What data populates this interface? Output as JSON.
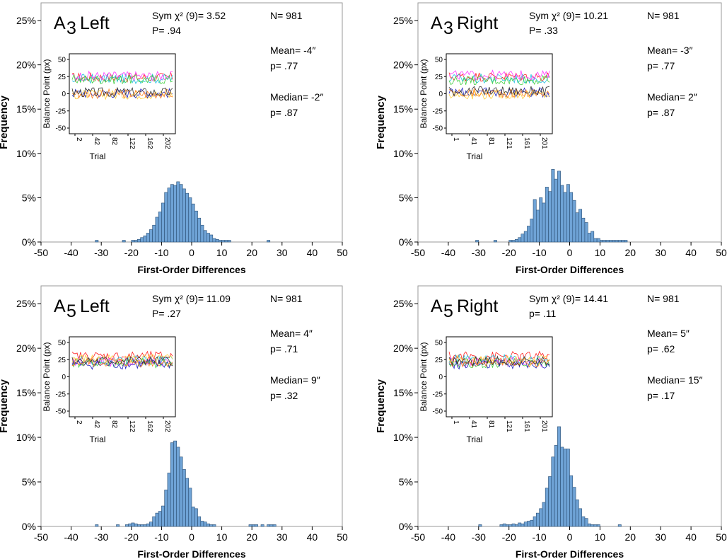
{
  "chart_data": [
    {
      "type": "bar",
      "title_main": "A",
      "title_sub": "3",
      "title_side": "Left",
      "stat_sym": "Sym χ² (9)= 3.52",
      "stat_p": "P= .94",
      "stat_n": "N= 981",
      "stat_mean": "Mean= -4″",
      "stat_mean_p": "p= .77",
      "stat_median": "Median= -2″",
      "stat_median_p": "p= .87",
      "xlabel": "First-Order Differences",
      "ylabel": "Frequency",
      "xlim": [
        -50,
        50
      ],
      "ylim": [
        0,
        27
      ],
      "yticks": [
        "0%",
        "5%",
        "10%",
        "15%",
        "20%",
        "25%"
      ],
      "xticks": [
        "-50",
        "-40",
        "-30",
        "-20",
        "-10",
        "0",
        "10",
        "20",
        "30",
        "40",
        "50"
      ],
      "bin_start": -32,
      "values": [
        0.2,
        0,
        0,
        0,
        0,
        0,
        0,
        0,
        0,
        0.2,
        0,
        0,
        0.2,
        0.2,
        0.3,
        0.5,
        0.7,
        1.0,
        1.4,
        1.9,
        2.8,
        3.4,
        4.4,
        5.6,
        6.1,
        6.5,
        6.4,
        6.8,
        6.5,
        6.0,
        5.5,
        5.0,
        4.3,
        3.5,
        2.7,
        1.9,
        1.3,
        1.0,
        0.8,
        0.4,
        0.3,
        0.2,
        0.2,
        0.2,
        0.2,
        0,
        0,
        0,
        0,
        0,
        0,
        0,
        0,
        0,
        0,
        0,
        0,
        0.2
      ],
      "inset": {
        "ylabel": "Balance Point (px)",
        "xlabel": "Trial",
        "yticks": [
          "50",
          "25",
          "0",
          "-25",
          "-50"
        ],
        "xticks": [
          "2",
          "42",
          "82",
          "122",
          "162",
          "202"
        ],
        "series_levels": [
          24,
          22,
          26,
          21,
          1,
          -1,
          0,
          2
        ]
      }
    },
    {
      "type": "bar",
      "title_main": "A",
      "title_sub": "3",
      "title_side": "Right",
      "stat_sym": "Sym χ² (9)= 10.21",
      "stat_p": "P= .33",
      "stat_n": "N= 981",
      "stat_mean": "Mean= -3″",
      "stat_mean_p": "p= .77",
      "stat_median": "Median= 2″",
      "stat_median_p": "p= .87",
      "xlabel": "First-Order Differences",
      "ylabel": "Frequency",
      "xlim": [
        -50,
        50
      ],
      "ylim": [
        0,
        27
      ],
      "yticks": [
        "0%",
        "5%",
        "10%",
        "15%",
        "20%",
        "25%"
      ],
      "xticks": [
        "-50",
        "-40",
        "-30",
        "-20",
        "-10",
        "0",
        "10",
        "20",
        "30",
        "40",
        "50"
      ],
      "bin_start": -31,
      "values": [
        0.2,
        0,
        0,
        0,
        0,
        0,
        0.2,
        0,
        0,
        0,
        0,
        0.2,
        0.2,
        0.3,
        0.5,
        0.9,
        1.2,
        1.8,
        2.6,
        4.8,
        3.6,
        5.0,
        4.4,
        6.2,
        5.7,
        8.2,
        7.1,
        8.0,
        6.4,
        5.6,
        6.5,
        5.6,
        4.7,
        3.3,
        3.7,
        2.7,
        2.2,
        1.0,
        1.2,
        0.4,
        0.4,
        0.2,
        0.2,
        0.2,
        0.2,
        0.2,
        0.2,
        0.2,
        0.2,
        0.2
      ],
      "inset": {
        "ylabel": "Balance Point (px)",
        "xlabel": "Trial",
        "yticks": [
          "50",
          "25",
          "0",
          "-25",
          "-50"
        ],
        "xticks": [
          "1",
          "41",
          "81",
          "121",
          "161",
          "201"
        ],
        "series_levels": [
          25,
          22,
          27,
          20,
          2,
          -1,
          1,
          4
        ]
      }
    },
    {
      "type": "bar",
      "title_main": "A",
      "title_sub": "5",
      "title_side": "Left",
      "stat_sym": "Sym χ² (9)= 11.09",
      "stat_p": "P= .27",
      "stat_n": "N= 981",
      "stat_mean": "Mean= 4″",
      "stat_mean_p": "p= .71",
      "stat_median": "Median= 9″",
      "stat_median_p": "p= .32",
      "xlabel": "First-Order Differences",
      "ylabel": "Frequency",
      "xlim": [
        -50,
        50
      ],
      "ylim": [
        0,
        27
      ],
      "yticks": [
        "0%",
        "5%",
        "10%",
        "15%",
        "20%",
        "25%"
      ],
      "xticks": [
        "-50",
        "-40",
        "-30",
        "-20",
        "-10",
        "0",
        "10",
        "20",
        "30",
        "40",
        "50"
      ],
      "bin_start": -32,
      "values": [
        0.2,
        0,
        0,
        0,
        0,
        0,
        0,
        0.2,
        0,
        0,
        0.2,
        0.3,
        0.4,
        0.3,
        0.2,
        0.2,
        0.2,
        0.3,
        0.5,
        1.1,
        1.5,
        1.7,
        2.3,
        4.1,
        6.0,
        9.4,
        9.6,
        8.9,
        7.8,
        6.4,
        5.4,
        4.3,
        2.2,
        2.0,
        1.1,
        0.6,
        0.5,
        0.3,
        0.2,
        0.2,
        0,
        0,
        0,
        0,
        0,
        0,
        0,
        0,
        0,
        0,
        0,
        0.2,
        0.2,
        0.2,
        0,
        0.2,
        0,
        0.2,
        0.2,
        0.2
      ],
      "inset": {
        "ylabel": "Balance Point (px)",
        "xlabel": "Trial",
        "yticks": [
          "50",
          "25",
          "0",
          "-25",
          "-50"
        ],
        "xticks": [
          "2",
          "42",
          "82",
          "122",
          "162",
          "202"
        ],
        "series_levels": [
          30,
          24,
          22,
          20,
          18,
          26,
          21,
          23
        ]
      }
    },
    {
      "type": "bar",
      "title_main": "A",
      "title_sub": "5",
      "title_side": "Right",
      "stat_sym": "Sym χ² (9)= 14.41",
      "stat_p": "p= .11",
      "stat_n": "N= 981",
      "stat_mean": "Mean= 5″",
      "stat_mean_p": "p= .62",
      "stat_median": "Median= 15″",
      "stat_median_p": "p= .17",
      "xlabel": "First-Order Differences",
      "ylabel": "Frequency",
      "xlim": [
        -50,
        50
      ],
      "ylim": [
        0,
        27
      ],
      "yticks": [
        "0%",
        "5%",
        "10%",
        "15%",
        "20%",
        "25%"
      ],
      "xticks": [
        "-50",
        "-40",
        "-30",
        "-20",
        "-10",
        "0",
        "10",
        "20",
        "30",
        "40",
        "50"
      ],
      "bin_start": -30,
      "values": [
        0.2,
        0,
        0,
        0,
        0,
        0,
        0,
        0.2,
        0.3,
        0.2,
        0.2,
        0.3,
        0.2,
        0.4,
        0.3,
        0.5,
        0.6,
        0.7,
        1.1,
        1.5,
        2.0,
        2.7,
        4.3,
        5.6,
        7.8,
        9.1,
        11.2,
        8.9,
        8.7,
        8.7,
        5.7,
        4.4,
        3.0,
        2.0,
        1.1,
        0.9,
        0.3,
        0.2,
        0.2,
        0.2,
        0,
        0,
        0,
        0,
        0,
        0,
        0.2
      ],
      "inset": {
        "ylabel": "Balance Point (px)",
        "xlabel": "Trial",
        "yticks": [
          "50",
          "25",
          "0",
          "-25",
          "-50"
        ],
        "xticks": [
          "1",
          "41",
          "81",
          "121",
          "161",
          "201"
        ],
        "series_levels": [
          30,
          26,
          22,
          20,
          18,
          24,
          21,
          23
        ]
      }
    }
  ],
  "colors": {
    "bar_fill": "#6fa3d6",
    "bar_edge": "#2b4f74",
    "inset_series": [
      "#ff2020",
      "#20c0e0",
      "#ff40ff",
      "#40d040",
      "#2020c0",
      "#ffd040",
      "#ff8020",
      "#303030"
    ]
  }
}
